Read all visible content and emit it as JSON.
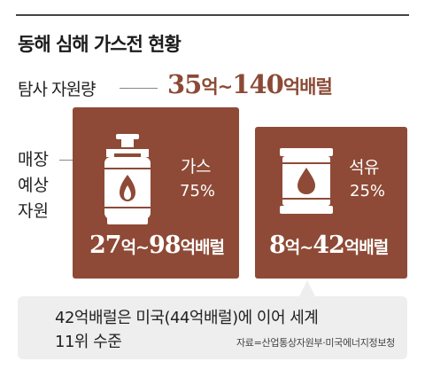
{
  "title": "동해 심해 가스전 현황",
  "estimate": {
    "label": "탐사 자원량",
    "value_min": "35",
    "unit_min": "억~",
    "value_max": "140",
    "unit_max": "억배럴"
  },
  "side_label": [
    "매장",
    "예상",
    "자원"
  ],
  "cards": [
    {
      "name": "가스",
      "percent": "75%",
      "icon": "gas-cylinder-icon",
      "value_min": "27",
      "unit_min": "억~",
      "value_max": "98",
      "unit_max": "억배럴"
    },
    {
      "name": "석유",
      "percent": "25%",
      "icon": "oil-barrel-icon",
      "value_min": "8",
      "unit_min": "억~",
      "value_max": "42",
      "unit_max": "억배럴"
    }
  ],
  "note": {
    "line1": "42억배럴은 미국(44억배럴)에 이어 세계",
    "line2": "11위 수준",
    "source": "자료=산업통상자원부·미국에너지정보청"
  },
  "colors": {
    "card_bg": "#8e4a36",
    "accent_text": "#8b4a36",
    "note_bg": "#eeeeee"
  }
}
